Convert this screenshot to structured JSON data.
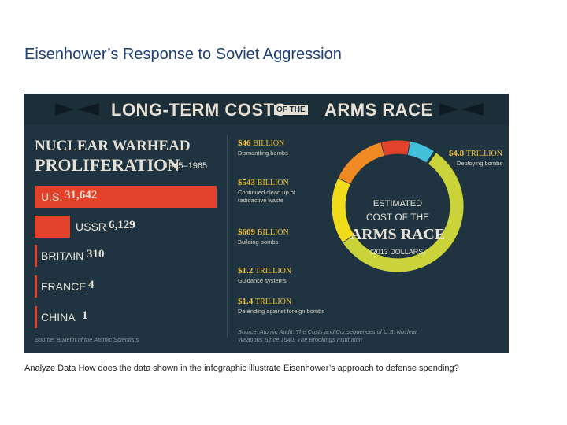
{
  "slide": {
    "title": "Eisenhower’s Response to Soviet Aggression",
    "caption": "Analyze Data How does the data shown in the infographic illustrate Eisenhower’s approach to defense spending?"
  },
  "banner": {
    "left": "LONG-TERM COSTS",
    "of_the": "OF THE",
    "right": "ARMS RACE"
  },
  "colors": {
    "background": "#1f3440",
    "bar": "#e2412a",
    "cream": "#e6e1d4",
    "accent": "#f1bd33",
    "ring": [
      "#44c1da",
      "#e2412a",
      "#f08a24",
      "#f0dc1b",
      "#cad33a"
    ]
  },
  "chart_data": [
    {
      "type": "bar",
      "title_line1": "NUCLEAR WARHEAD",
      "title_line2": "PROLIFERATION",
      "years": "1945–1965",
      "categories": [
        "U.S.",
        "USSR",
        "BRITAIN",
        "FRANCE",
        "CHINA"
      ],
      "values": [
        31642,
        6129,
        310,
        4,
        1
      ],
      "value_labels": [
        "31,642",
        "6,129",
        "310",
        "4",
        "1"
      ],
      "source": "Source: Bulletin of the Atomic Scientists"
    },
    {
      "type": "pie",
      "center_line1": "ESTIMATED",
      "center_line2": "COST OF THE",
      "center_line3": "ARMS RACE",
      "center_line4": "(2013 DOLLARS)",
      "slices": [
        {
          "amount": "$46",
          "unit": "BILLION",
          "label": "Dismantling bombs",
          "value_billions": 46
        },
        {
          "amount": "$543",
          "unit": "BILLION",
          "label": "Continued clean up of radioactive waste",
          "value_billions": 543
        },
        {
          "amount": "$609",
          "unit": "BILLION",
          "label": "Building bombs",
          "value_billions": 609
        },
        {
          "amount": "$1.2",
          "unit": "TRILLION",
          "label": "Guidance systems",
          "value_billions": 1200
        },
        {
          "amount": "$1.4",
          "unit": "TRILLION",
          "label": "Defending against foreign bombs",
          "value_billions": 1400
        },
        {
          "amount": "$4.8",
          "unit": "TRILLION",
          "label": "Deploying bombs",
          "value_billions": 4800
        }
      ],
      "source": "Source: Atomic Audit: The Costs and Consequences of U.S. Nuclear Weapons Since 1940, The Brookings Institution"
    }
  ]
}
